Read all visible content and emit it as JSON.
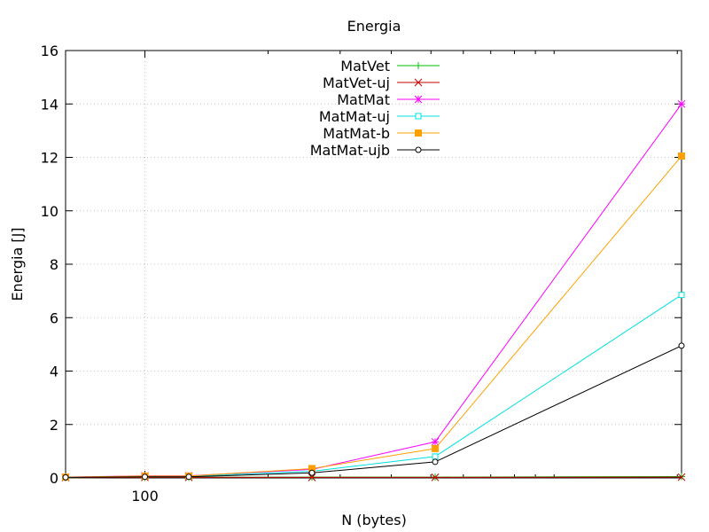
{
  "chart_data": {
    "type": "line",
    "title": "Energia",
    "xlabel": "N (bytes)",
    "ylabel": "Energia [J]",
    "x_scale": "log",
    "xlim": [
      64,
      2048
    ],
    "ylim": [
      0,
      16
    ],
    "yticks": [
      0,
      2,
      4,
      6,
      8,
      10,
      12,
      14,
      16
    ],
    "x_labeled_ticks": [
      100
    ],
    "x_minor_ticks": [
      200,
      300,
      400,
      500,
      600,
      700,
      800,
      900,
      1000,
      2000
    ],
    "grid": true,
    "legend": "top-center",
    "x": [
      64,
      100,
      128,
      256,
      512,
      2048
    ],
    "series": [
      {
        "name": "MatVet",
        "color": "#00c000",
        "marker": "plus",
        "values": [
          0.01,
          0.02,
          0.02,
          0.03,
          0.03,
          0.05
        ]
      },
      {
        "name": "MatVet-uj",
        "color": "#c00000",
        "marker": "x",
        "values": [
          0.01,
          0.02,
          0.02,
          0.02,
          0.02,
          0.03
        ]
      },
      {
        "name": "MatMat",
        "color": "#ff00ff",
        "marker": "star",
        "values": [
          0.03,
          0.08,
          0.08,
          0.32,
          1.35,
          14.0
        ]
      },
      {
        "name": "MatMat-uj",
        "color": "#00e0e0",
        "marker": "square-open",
        "values": [
          0.02,
          0.06,
          0.06,
          0.25,
          0.8,
          6.85
        ]
      },
      {
        "name": "MatMat-b",
        "color": "#ffa000",
        "marker": "square-filled",
        "values": [
          0.03,
          0.07,
          0.07,
          0.35,
          1.1,
          12.05
        ]
      },
      {
        "name": "MatMat-ujb",
        "color": "#000000",
        "marker": "circle-open",
        "values": [
          0.02,
          0.04,
          0.04,
          0.19,
          0.6,
          4.95
        ]
      }
    ]
  }
}
